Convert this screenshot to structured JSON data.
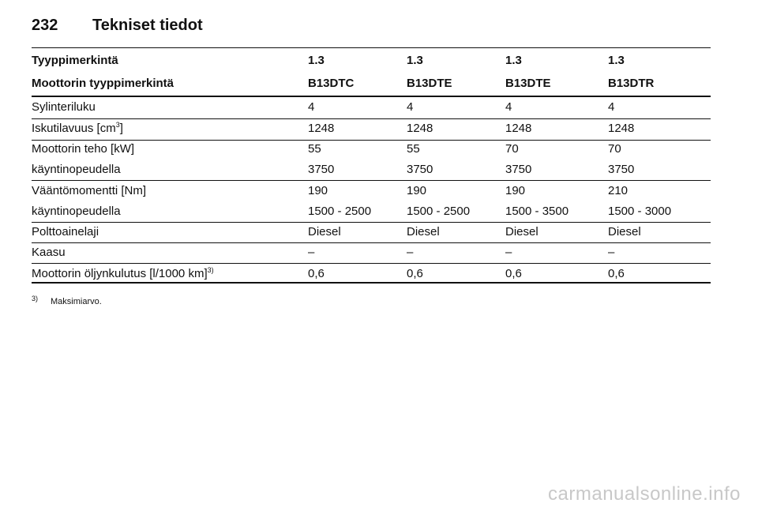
{
  "header": {
    "page_number": "232",
    "title": "Tekniset tiedot"
  },
  "table": {
    "header_rows": [
      [
        "Tyyppimerkintä",
        "1.3",
        "1.3",
        "1.3",
        "1.3"
      ],
      [
        "Moottorin tyyppimerkintä",
        "B13DTC",
        "B13DTE",
        "B13DTE",
        "B13DTR"
      ]
    ],
    "rows": [
      {
        "label": "Sylinteriluku",
        "cells": [
          "4",
          "4",
          "4",
          "4"
        ]
      },
      {
        "label": "Iskutilavuus [cm",
        "label_sup": "3",
        "label_end": "]",
        "cells": [
          "1248",
          "1248",
          "1248",
          "1248"
        ]
      },
      {
        "label": "Moottorin teho [kW]",
        "cells": [
          "55",
          "55",
          "70",
          "70"
        ]
      },
      {
        "label": "käyntinopeudella",
        "cells": [
          "3750",
          "3750",
          "3750",
          "3750"
        ]
      },
      {
        "label": "Vääntömomentti [Nm]",
        "cells": [
          "190",
          "190",
          "190",
          "210"
        ]
      },
      {
        "label": "käyntinopeudella",
        "cells": [
          "1500 - 2500",
          "1500 - 2500",
          "1500 - 3500",
          "1500 - 3000"
        ]
      },
      {
        "label": "Polttoainelaji",
        "cells": [
          "Diesel",
          "Diesel",
          "Diesel",
          "Diesel"
        ]
      },
      {
        "label": "Kaasu",
        "cells": [
          "–",
          "–",
          "–",
          "–"
        ]
      },
      {
        "label": "Moottorin öljynkulutus [l/1000 km]",
        "label_sup": "3)",
        "cells": [
          "0,6",
          "0,6",
          "0,6",
          "0,6"
        ]
      }
    ]
  },
  "footnote": {
    "marker": "3)",
    "text": "Maksimiarvo."
  },
  "watermark": "carmanualsonline.info"
}
